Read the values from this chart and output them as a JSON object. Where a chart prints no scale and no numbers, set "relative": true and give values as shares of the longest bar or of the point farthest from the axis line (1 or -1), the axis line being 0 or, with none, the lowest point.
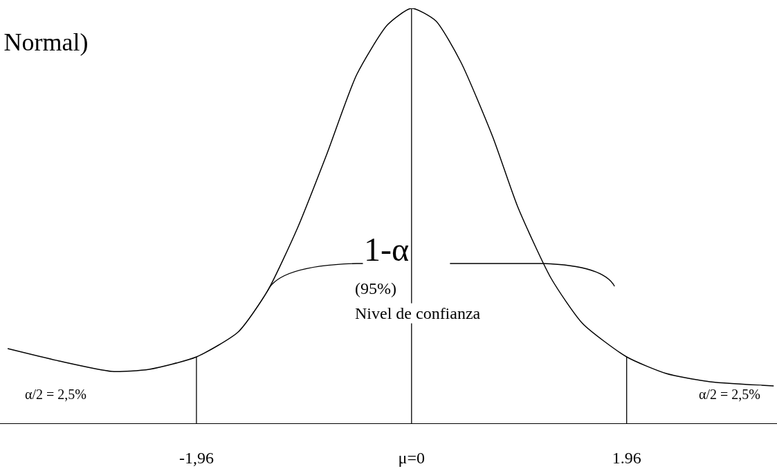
{
  "chart_data": {
    "type": "line",
    "title": "Normal)",
    "relative": true,
    "x": [
      -3.68,
      -3.21,
      -2.73,
      -2.39,
      -1.96,
      -1.58,
      -1.31,
      -1.04,
      -0.77,
      -0.5,
      -0.22,
      0,
      0.22,
      0.45,
      0.74,
      0.97,
      1.27,
      1.56,
      1.96,
      2.32,
      2.72,
      3.3
    ],
    "series": [
      {
        "color": "#000000",
        "values": [
          0.18,
          0.15,
          0.125,
          0.13,
          0.16,
          0.22,
          0.32,
          0.47,
          0.65,
          0.84,
          0.96,
          1.0,
          0.97,
          0.87,
          0.69,
          0.52,
          0.35,
          0.24,
          0.16,
          0.12,
          0.1,
          0.09
        ]
      }
    ],
    "xlim": [
      -3.75,
      3.33
    ],
    "xticks": [
      {
        "value": -1.96,
        "label": "-1,96"
      },
      {
        "value": 0,
        "label": "μ=0"
      },
      {
        "value": 1.96,
        "label": "1.96"
      }
    ],
    "ref_lines": [
      {
        "axis": "x",
        "value": -1.96,
        "color": "#000000"
      },
      {
        "axis": "x",
        "value": 0,
        "color": "#000000"
      },
      {
        "axis": "x",
        "value": 1.96,
        "color": "#000000"
      }
    ],
    "annotations": [
      "1-α",
      "(95%)",
      "Nivel de confianza",
      "α/2 = 2,5%",
      "α/2 = 2,5%"
    ],
    "legend": false,
    "marker": "none",
    "line_style": "solid"
  }
}
